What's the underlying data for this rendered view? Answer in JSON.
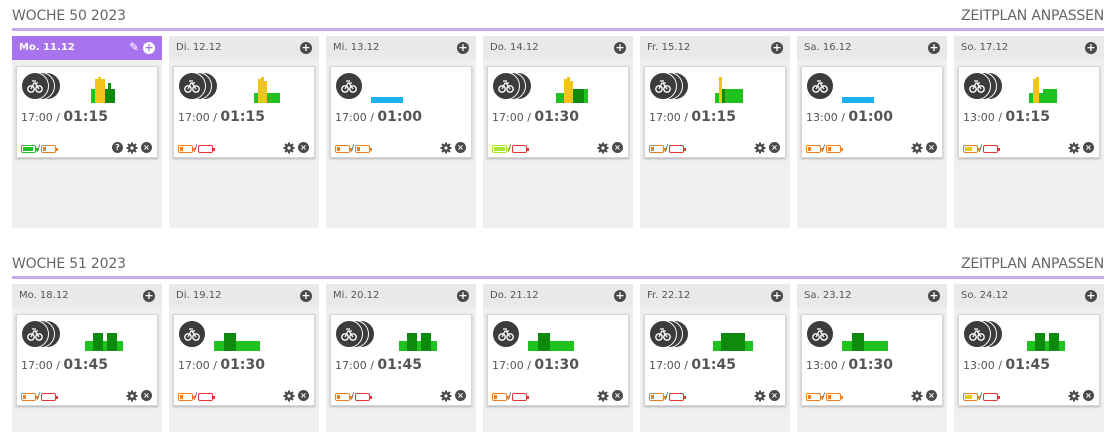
{
  "weeks": [
    {
      "title": "WOCHE 50 2023",
      "action": "ZEITPLAN ANPASSEN",
      "days": [
        {
          "label": "Mo. 11.12",
          "today": true,
          "discs": 3,
          "time": "17:00 /",
          "duration": "01:15",
          "bars": "a",
          "bat1": "green-full",
          "bat2": "orange",
          "help": true
        },
        {
          "label": "Di. 12.12",
          "discs": 3,
          "time": "17:00 /",
          "duration": "01:15",
          "bars": "b",
          "bat1": "orange",
          "bat2": "red"
        },
        {
          "label": "Mi. 13.12",
          "discs": 1,
          "time": "17:00 /",
          "duration": "01:00",
          "bars": "blue",
          "bat1": "orange",
          "bat2": "orange"
        },
        {
          "label": "Do. 14.12",
          "discs": 3,
          "time": "17:00 /",
          "duration": "01:30",
          "bars": "c",
          "bat1": "lime",
          "bat2": "red"
        },
        {
          "label": "Fr. 15.12",
          "discs": 3,
          "time": "17:00 /",
          "duration": "01:15",
          "bars": "d",
          "bat1": "orange",
          "bat2": "red"
        },
        {
          "label": "Sa. 16.12",
          "discs": 1,
          "time": "13:00 /",
          "duration": "01:00",
          "bars": "blue",
          "bat1": "orange",
          "bat2": "orange"
        },
        {
          "label": "So. 17.12",
          "discs": 3,
          "time": "13:00 /",
          "duration": "01:15",
          "bars": "e",
          "bat1": "yellow",
          "bat2": "red"
        }
      ]
    },
    {
      "title": "WOCHE 51 2023",
      "action": "ZEITPLAN ANPASSEN",
      "days": [
        {
          "label": "Mo. 18.12",
          "discs": 3,
          "time": "17:00 /",
          "duration": "01:45",
          "bars": "f",
          "bat1": "orange",
          "bat2": "red"
        },
        {
          "label": "Di. 19.12",
          "discs": 1,
          "time": "17:00 /",
          "duration": "01:30",
          "bars": "g",
          "bat1": "orange",
          "bat2": "red"
        },
        {
          "label": "Mi. 20.12",
          "discs": 3,
          "time": "17:00 /",
          "duration": "01:45",
          "bars": "f",
          "bat1": "orange",
          "bat2": "red"
        },
        {
          "label": "Do. 21.12",
          "discs": 1,
          "time": "17:00 /",
          "duration": "01:30",
          "bars": "g",
          "bat1": "orange",
          "bat2": "red"
        },
        {
          "label": "Fr. 22.12",
          "discs": 3,
          "time": "17:00 /",
          "duration": "01:45",
          "bars": "h",
          "bat1": "orange",
          "bat2": "red"
        },
        {
          "label": "Sa. 23.12",
          "discs": 1,
          "time": "13:00 /",
          "duration": "01:30",
          "bars": "g",
          "bat1": "orange",
          "bat2": "orange"
        },
        {
          "label": "So. 24.12",
          "discs": 3,
          "time": "13:00 /",
          "duration": "01:45",
          "bars": "f",
          "bat1": "yellow",
          "bat2": "red"
        }
      ]
    }
  ],
  "slash": "/",
  "help_glyph": "?",
  "close_glyph": "×",
  "plus_glyph": "+",
  "pencil_glyph": "✎",
  "colors": {
    "accent": "#a874ee",
    "header_line": "#c9a9ec",
    "green": "#1fc21f",
    "dark_green": "#0e8a0e",
    "yellow": "#f0c419",
    "blue": "#1ab3ef",
    "orange": "#f07f1f",
    "red": "#e33232",
    "lime": "#a9e62f"
  }
}
